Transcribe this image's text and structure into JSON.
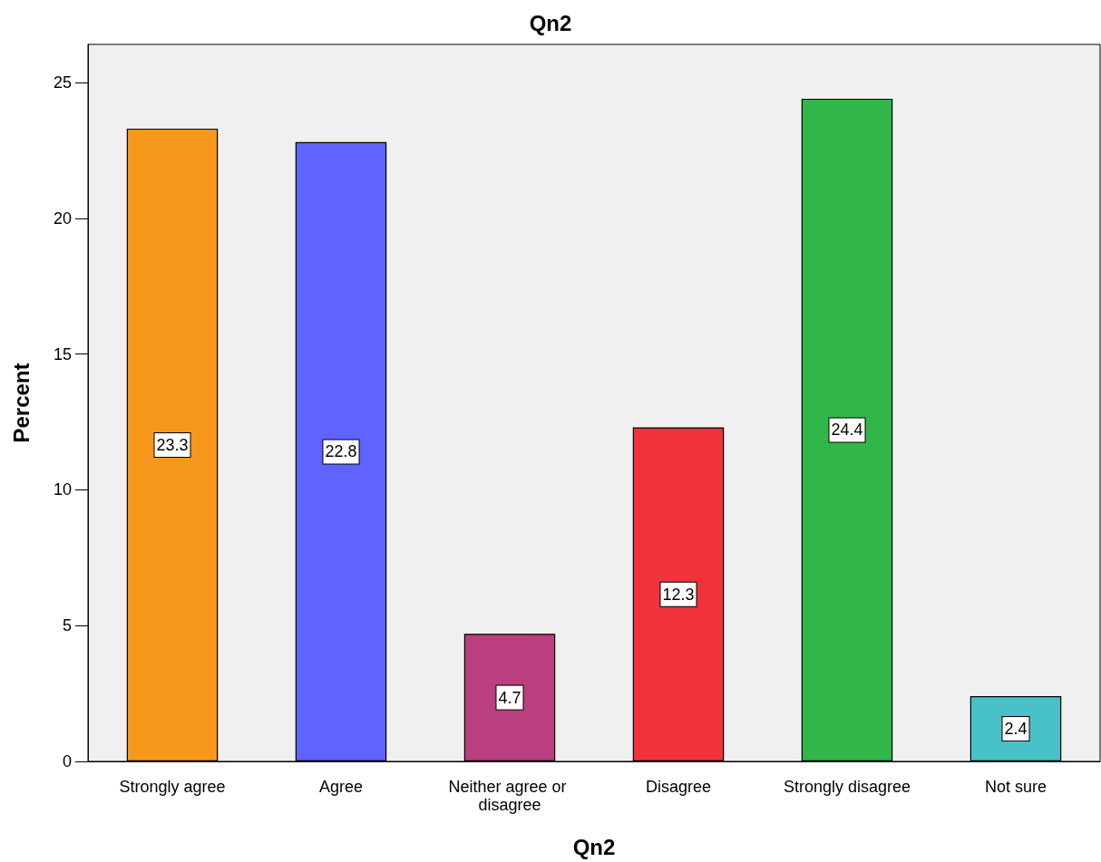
{
  "chart_data": {
    "type": "bar",
    "title": "Qn2",
    "xlabel": "Qn2",
    "ylabel": "Percent",
    "categories": [
      "Strongly agree",
      "Agree",
      "Neither agree or disagree",
      "Disagree",
      "Strongly disagree",
      "Not sure"
    ],
    "values": [
      23.3,
      22.8,
      4.7,
      12.3,
      24.4,
      2.4
    ],
    "colors": [
      "#f7981d",
      "#5f63ff",
      "#b93f7e",
      "#f0333a",
      "#31b64a",
      "#48c1c8"
    ],
    "ylim": [
      0,
      26.4
    ],
    "yticks": [
      0,
      5,
      10,
      15,
      20,
      25
    ],
    "grid": false,
    "data_labels": true
  }
}
